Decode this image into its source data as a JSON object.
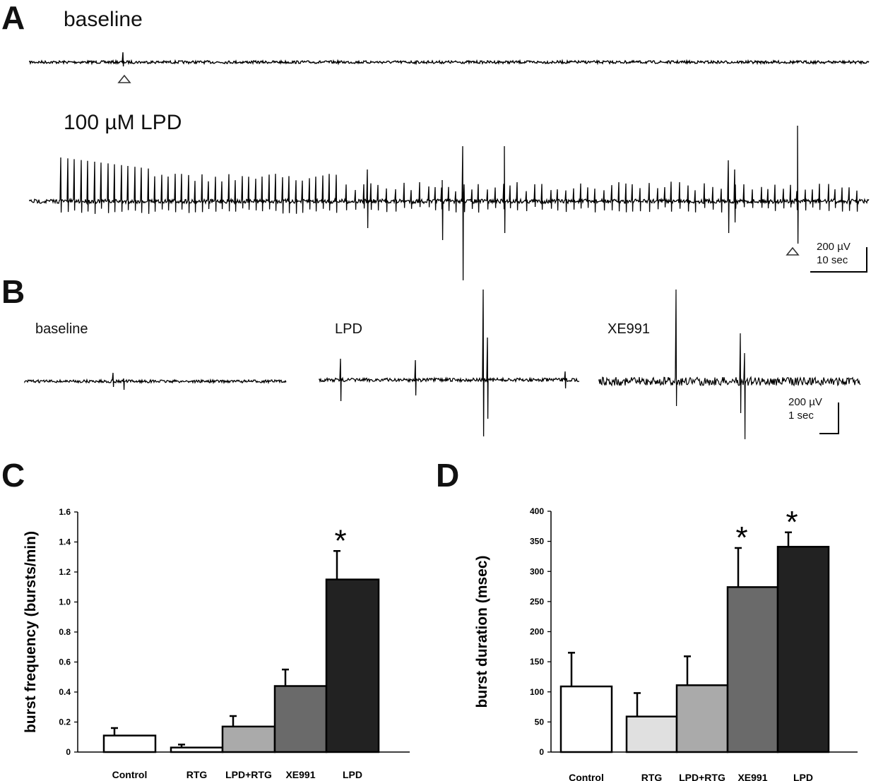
{
  "panels": {
    "A": {
      "letter": "A",
      "trace1_label": "baseline",
      "trace2_label": "100 µM LPD",
      "scale_amplitude": "200 µV",
      "scale_time": "10 sec"
    },
    "B": {
      "letter": "B",
      "labels": [
        "baseline",
        "LPD",
        "XE991"
      ],
      "scale_amplitude": "200 µV",
      "scale_time": "1 sec"
    },
    "C": {
      "letter": "C"
    },
    "D": {
      "letter": "D"
    }
  },
  "chart_data": [
    {
      "type": "bar",
      "panel": "C",
      "ylabel": "burst frequency (bursts/min)",
      "xlabel": "",
      "categories": [
        "Control",
        "RTG",
        "LPD+RTG",
        "XE991",
        "LPD"
      ],
      "values": [
        0.11,
        0.03,
        0.17,
        0.44,
        1.15
      ],
      "errors": [
        0.05,
        0.02,
        0.07,
        0.11,
        0.19
      ],
      "significance": [
        "",
        "",
        "",
        "",
        "*"
      ],
      "ylim": [
        0,
        1.6
      ],
      "yticks": [
        "0",
        "0.2",
        "0.4",
        "0.6",
        "0.8",
        "1.0",
        "1.2",
        "1.4",
        "1.6"
      ],
      "bar_colors": [
        "#ffffff",
        "#ffffff",
        "#aaaaaa",
        "#6a6a6a",
        "#222222"
      ],
      "grid": false
    },
    {
      "type": "bar",
      "panel": "D",
      "ylabel": "burst duration (msec)",
      "xlabel": "",
      "categories": [
        "Control",
        "RTG",
        "LPD+RTG",
        "XE991",
        "LPD"
      ],
      "values": [
        109,
        59,
        111,
        274,
        341
      ],
      "errors": [
        56,
        39,
        48,
        65,
        24
      ],
      "significance": [
        "",
        "",
        "",
        "*",
        "*"
      ],
      "ylim": [
        0,
        400
      ],
      "yticks": [
        "0",
        "50",
        "100",
        "150",
        "200",
        "250",
        "300",
        "350",
        "400"
      ],
      "bar_colors": [
        "#ffffff",
        "#e0e0e0",
        "#aaaaaa",
        "#6a6a6a",
        "#222222"
      ],
      "grid": false
    }
  ]
}
